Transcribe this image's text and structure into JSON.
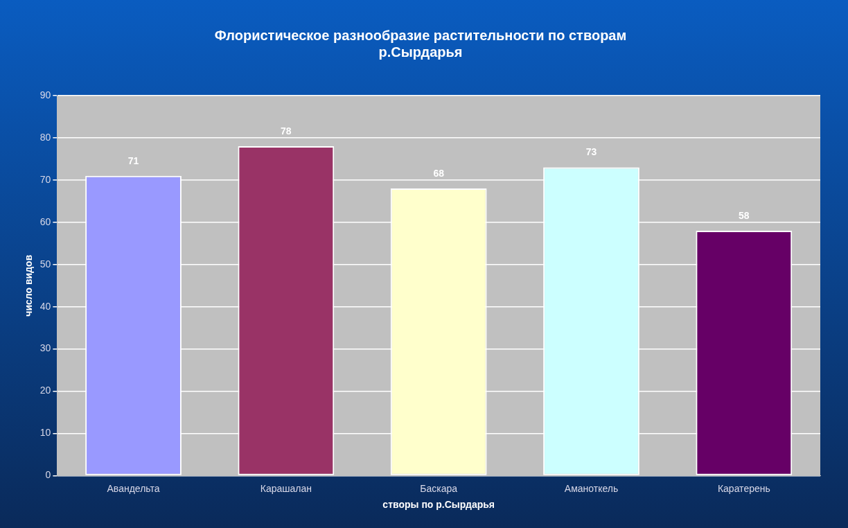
{
  "chart_data": {
    "type": "bar",
    "title": "Флористическое разнообразие растительности по створам\nр.Сырдарья",
    "xlabel": "створы по р.Сырдарья",
    "ylabel": "число видов",
    "categories": [
      "Авандельта",
      "Карашалан",
      "Баскара",
      "Аманоткель",
      "Каратерень"
    ],
    "values": [
      71,
      78,
      68,
      73,
      58
    ],
    "colors": [
      "#9999ff",
      "#993366",
      "#ffffcc",
      "#ccffff",
      "#660066"
    ],
    "ylim": [
      0,
      90
    ],
    "yticks": [
      0,
      10,
      20,
      30,
      40,
      50,
      60,
      70,
      80,
      90
    ],
    "grid": "y",
    "data_labels": true,
    "legend": false
  }
}
